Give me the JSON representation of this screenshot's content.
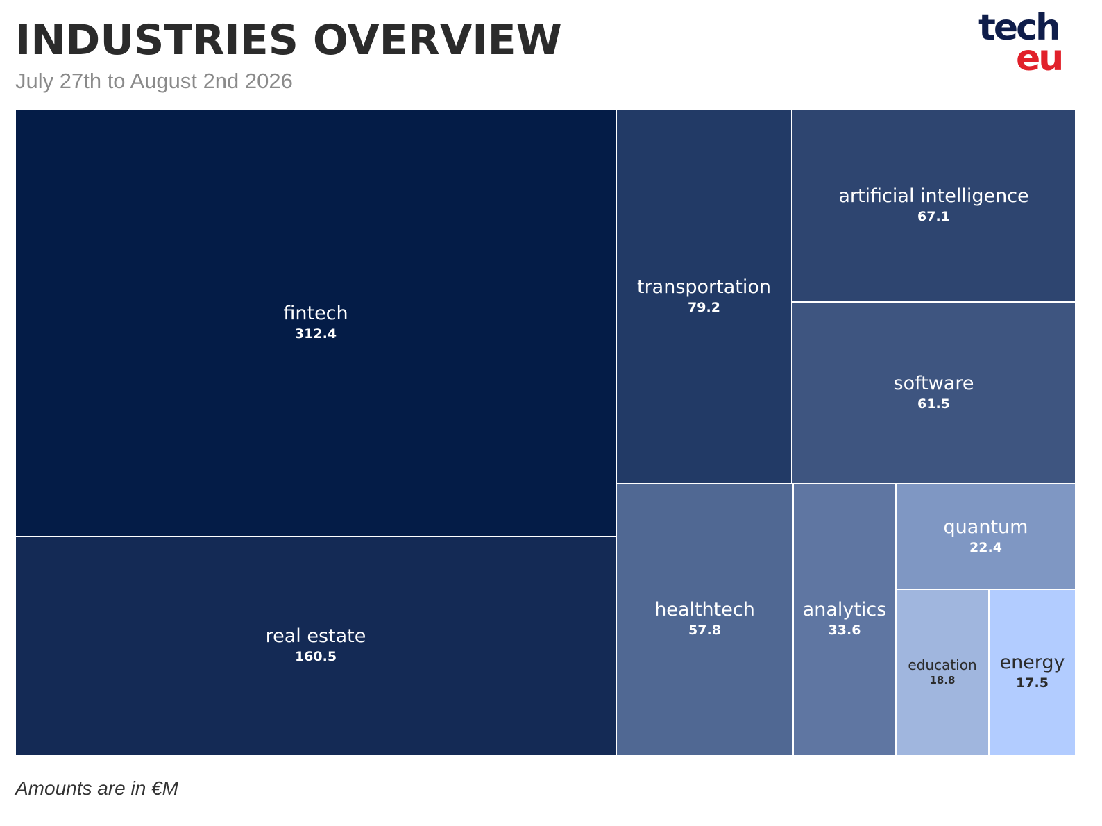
{
  "header": {
    "title": "INDUSTRIES OVERVIEW",
    "subtitle": "July 27th to August 2nd 2026"
  },
  "logo": {
    "line1": "tech",
    "line2": "eu"
  },
  "footer": {
    "note": "Amounts are in €M"
  },
  "colors": {
    "fintech": "#041c47",
    "real estate": "#142a55",
    "transportation": "#223a66",
    "artificial intelligence": "#2e4570",
    "software": "#3e5580",
    "healthtech": "#506893",
    "analytics": "#5f76a2",
    "quantum": "#7f97c3",
    "education": "#a0b6de",
    "energy": "#b2ccff"
  },
  "chart_data": {
    "type": "treemap",
    "title": "INDUSTRIES OVERVIEW",
    "subtitle": "July 27th to August 2nd 2026",
    "unit_note": "Amounts are in €M",
    "items": [
      {
        "label": "fintech",
        "value": 312.4
      },
      {
        "label": "real estate",
        "value": 160.5
      },
      {
        "label": "transportation",
        "value": 79.2
      },
      {
        "label": "artificial intelligence",
        "value": 67.1
      },
      {
        "label": "software",
        "value": 61.5
      },
      {
        "label": "healthtech",
        "value": 57.8
      },
      {
        "label": "analytics",
        "value": 33.6
      },
      {
        "label": "quantum",
        "value": 22.4
      },
      {
        "label": "education",
        "value": 18.8
      },
      {
        "label": "energy",
        "value": 17.5
      }
    ]
  }
}
